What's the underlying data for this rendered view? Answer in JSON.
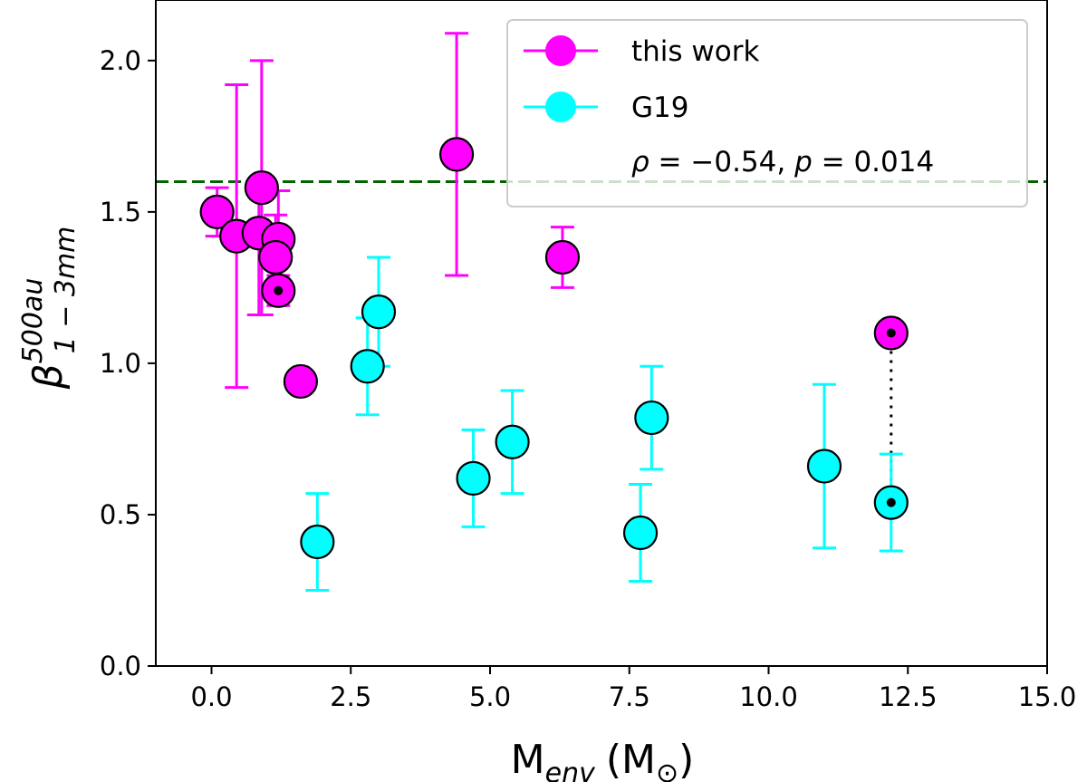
{
  "chart_data": {
    "type": "scatter",
    "xlabel": "M",
    "xlabel_sub": "env",
    "xlabel_unit": "(M",
    "xlabel_unit_sub": "⊙",
    "xlabel_close": ")",
    "ylabel": "β",
    "ylabel_sup": "500au",
    "ylabel_sub": "1 − 3mm",
    "xlim": [
      -1.0,
      15.0
    ],
    "ylim": [
      0.0,
      2.2
    ],
    "xticks": [
      0.0,
      2.5,
      5.0,
      7.5,
      10.0,
      12.5,
      15.0
    ],
    "xtick_labels": [
      "0.0",
      "2.5",
      "5.0",
      "7.5",
      "10.0",
      "12.5",
      "15.0"
    ],
    "yticks": [
      0.0,
      0.5,
      1.0,
      1.5,
      2.0
    ],
    "ytick_labels": [
      "0.0",
      "0.5",
      "1.0",
      "1.5",
      "2.0"
    ],
    "reference_line": {
      "y": 1.6,
      "style": "dashed",
      "color": "#006400"
    },
    "legend_position": "top-right",
    "series": [
      {
        "name": "this work",
        "color": "#ff00ff",
        "points": [
          {
            "x": 0.1,
            "y": 1.5,
            "err_low": 0.08,
            "err_high": 0.08,
            "marked": false
          },
          {
            "x": 0.45,
            "y": 1.42,
            "err_low": 0.5,
            "err_high": 0.5,
            "marked": false
          },
          {
            "x": 0.85,
            "y": 1.43,
            "err_low": 0.27,
            "err_high": 0.15,
            "marked": false
          },
          {
            "x": 0.9,
            "y": 1.58,
            "err_low": 0.42,
            "err_high": 0.42,
            "marked": false
          },
          {
            "x": 1.2,
            "y": 1.41,
            "err_low": 0.16,
            "err_high": 0.16,
            "marked": false
          },
          {
            "x": 1.15,
            "y": 1.35,
            "err_low": 0.1,
            "err_high": 0.14,
            "marked": false
          },
          {
            "x": 1.2,
            "y": 1.24,
            "err_low": 0.05,
            "err_high": 0.05,
            "marked": true
          },
          {
            "x": 1.6,
            "y": 0.94,
            "err_low": 0.0,
            "err_high": 0.0,
            "marked": false
          },
          {
            "x": 4.4,
            "y": 1.69,
            "err_low": 0.4,
            "err_high": 0.4,
            "marked": false
          },
          {
            "x": 6.3,
            "y": 1.35,
            "err_low": 0.1,
            "err_high": 0.1,
            "marked": false
          },
          {
            "x": 12.2,
            "y": 1.1,
            "err_low": 0.0,
            "err_high": 0.0,
            "marked": true
          }
        ]
      },
      {
        "name": "G19",
        "color": "#00ffff",
        "points": [
          {
            "x": 1.9,
            "y": 0.41,
            "err_low": 0.16,
            "err_high": 0.16,
            "marked": false
          },
          {
            "x": 2.8,
            "y": 0.99,
            "err_low": 0.16,
            "err_high": 0.16,
            "marked": false
          },
          {
            "x": 3.0,
            "y": 1.17,
            "err_low": 0.18,
            "err_high": 0.18,
            "marked": false
          },
          {
            "x": 4.7,
            "y": 0.62,
            "err_low": 0.16,
            "err_high": 0.16,
            "marked": false
          },
          {
            "x": 5.4,
            "y": 0.74,
            "err_low": 0.17,
            "err_high": 0.17,
            "marked": false
          },
          {
            "x": 7.7,
            "y": 0.44,
            "err_low": 0.16,
            "err_high": 0.16,
            "marked": false
          },
          {
            "x": 7.9,
            "y": 0.82,
            "err_low": 0.17,
            "err_high": 0.17,
            "marked": false
          },
          {
            "x": 11.0,
            "y": 0.66,
            "err_low": 0.27,
            "err_high": 0.27,
            "marked": false
          },
          {
            "x": 12.2,
            "y": 0.54,
            "err_low": 0.16,
            "err_high": 0.16,
            "marked": true
          }
        ]
      }
    ],
    "connector": {
      "x": 12.2,
      "y_from": 1.1,
      "y_to": 0.54,
      "style": "dotted"
    },
    "annotation": {
      "rho_symbol": "ρ",
      "rho_text": " = −0.54, ",
      "p_symbol": "p",
      "p_text": " = 0.014"
    }
  }
}
